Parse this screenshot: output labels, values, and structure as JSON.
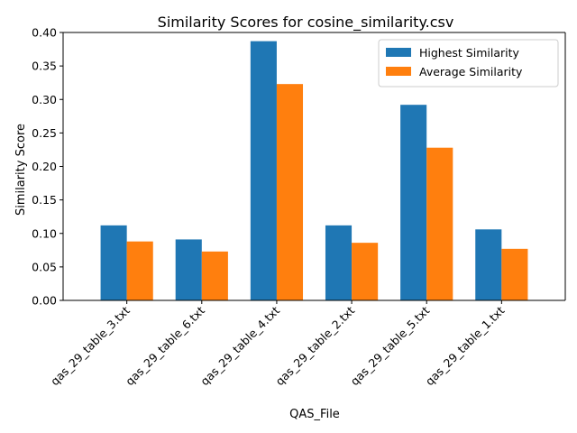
{
  "chart_data": {
    "type": "bar",
    "title": "Similarity Scores for cosine_similarity.csv",
    "xlabel": "QAS_File",
    "ylabel": "Similarity Score",
    "categories": [
      "qas_29_table_3.txt",
      "qas_29_table_6.txt",
      "qas_29_table_4.txt",
      "qas_29_table_2.txt",
      "qas_29_table_5.txt",
      "qas_29_table_1.txt"
    ],
    "series": [
      {
        "name": "Highest Similarity",
        "color": "#1f77b4",
        "values": [
          0.112,
          0.091,
          0.387,
          0.112,
          0.292,
          0.106
        ]
      },
      {
        "name": "Average Similarity",
        "color": "#ff7f0e",
        "values": [
          0.088,
          0.073,
          0.323,
          0.086,
          0.228,
          0.077
        ]
      }
    ],
    "ylim": [
      0,
      0.4
    ],
    "yticks": [
      "0.00",
      "0.05",
      "0.10",
      "0.15",
      "0.20",
      "0.25",
      "0.30",
      "0.35",
      "0.40"
    ],
    "grid": false,
    "legend_position": "top-right"
  }
}
